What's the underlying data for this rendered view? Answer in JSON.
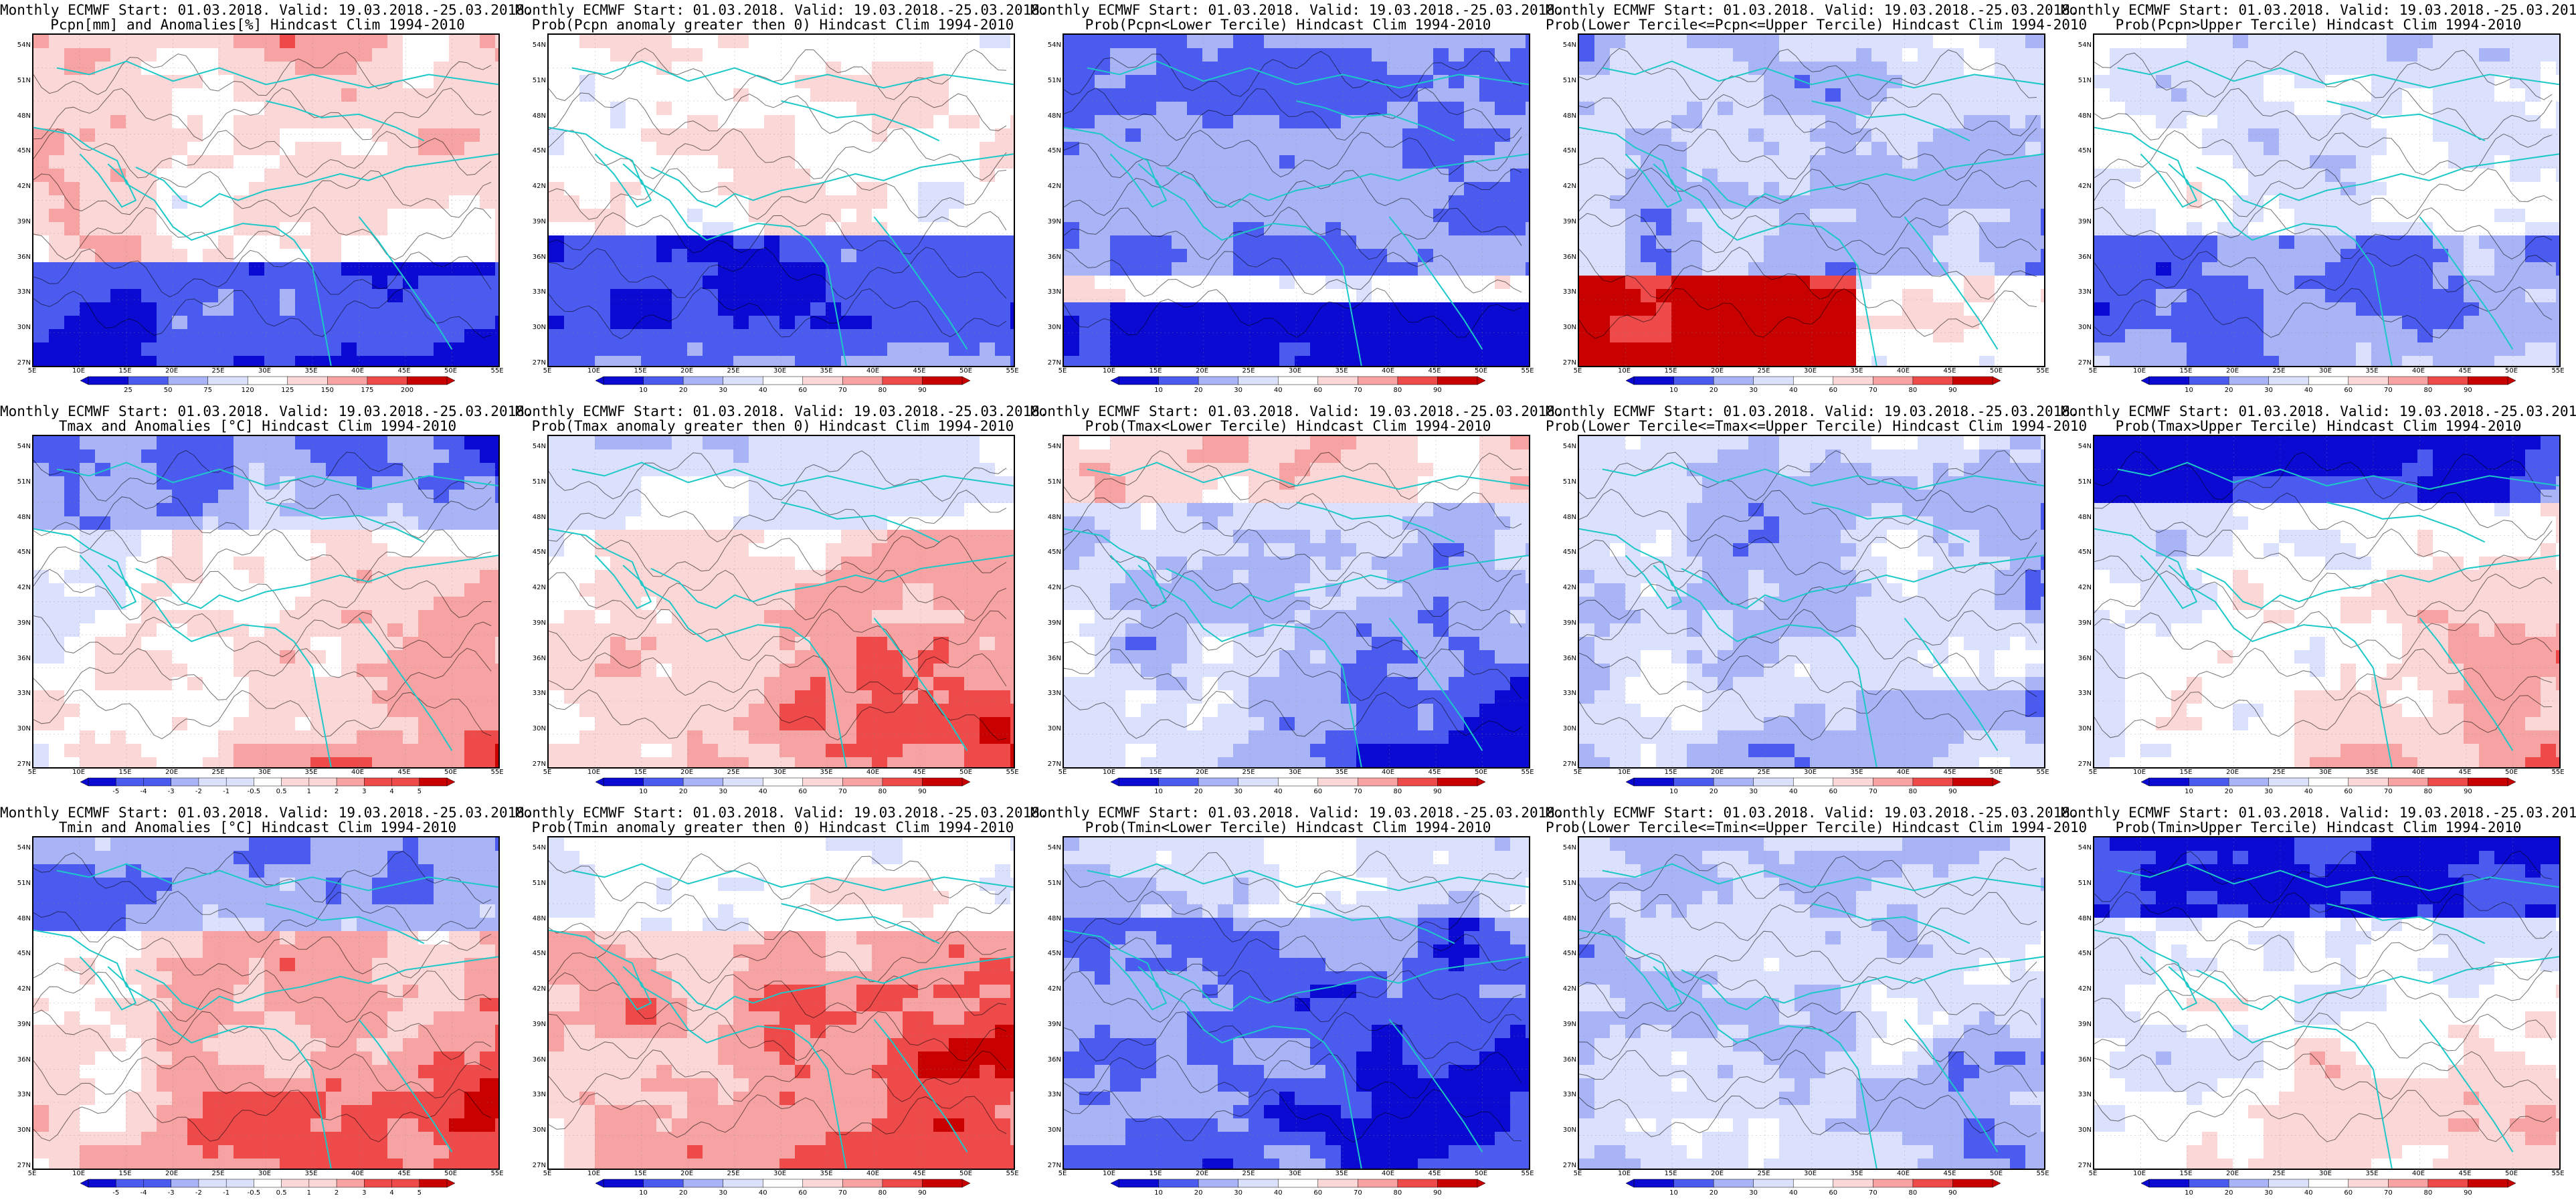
{
  "header_line": "Monthly ECMWF Start: 01.03.2018. Valid: 19.03.2018.-25.03.2018.",
  "lat_labels": [
    "54N",
    "51N",
    "48N",
    "45N",
    "42N",
    "39N",
    "36N",
    "33N",
    "30N",
    "27N"
  ],
  "lon_labels": [
    "5E",
    "10E",
    "15E",
    "20E",
    "25E",
    "30E",
    "35E",
    "40E",
    "45E",
    "50E",
    "55E"
  ],
  "colorbars": {
    "pcpn": [
      "25",
      "50",
      "75",
      "120",
      "125",
      "150",
      "175",
      "200"
    ],
    "prob": [
      "10",
      "20",
      "30",
      "40",
      "60",
      "70",
      "80",
      "90"
    ],
    "temp": [
      "-5",
      "-4",
      "-3",
      "-2",
      "-1",
      "-0.5",
      "0.5",
      "1",
      "2",
      "3",
      "4",
      "5"
    ]
  },
  "colors": {
    "deep_blue": "#0a0ad2",
    "mid_blue": "#4b5bf0",
    "light_blue": "#a9b4f7",
    "pale_blue": "#dbe0fc",
    "pale_red": "#fcd7d7",
    "light_red": "#f7a3a3",
    "mid_red": "#ee4a4a",
    "deep_red": "#c80000",
    "coast": "#1cc8c8",
    "contour": "#000000"
  },
  "panels": [
    {
      "id": "r1c1",
      "title": "Pcpn[mm] and Anomalies[%] Hindcast Clim 1994-2010",
      "cbar": "pcpn",
      "pattern": "pcpn_anom"
    },
    {
      "id": "r1c2",
      "title": "Prob(Pcpn anomaly greater then 0) Hindcast Clim 1994-2010",
      "cbar": "prob",
      "pattern": "pcpn_pos"
    },
    {
      "id": "r1c3",
      "title": "Prob(Pcpn<Lower Tercile) Hindcast Clim 1994-2010",
      "cbar": "prob",
      "pattern": "pcpn_low"
    },
    {
      "id": "r1c4",
      "title": "Prob(Lower Tercile<=Pcpn<=Upper Tercile) Hindcast Clim 1994-2010",
      "cbar": "prob",
      "pattern": "pcpn_mid"
    },
    {
      "id": "r1c5",
      "title": "Prob(Pcpn>Upper Tercile) Hindcast Clim 1994-2010",
      "cbar": "prob",
      "pattern": "pcpn_up"
    },
    {
      "id": "r2c1",
      "title": "Tmax and Anomalies [°C] Hindcast Clim 1994-2010",
      "cbar": "temp",
      "pattern": "t_anom"
    },
    {
      "id": "r2c2",
      "title": "Prob(Tmax anomaly greater then 0) Hindcast Clim 1994-2010",
      "cbar": "prob",
      "pattern": "t_pos"
    },
    {
      "id": "r2c3",
      "title": "Prob(Tmax<Lower Tercile) Hindcast Clim 1994-2010",
      "cbar": "prob",
      "pattern": "t_low"
    },
    {
      "id": "r2c4",
      "title": "Prob(Lower Tercile<=Tmax<=Upper Tercile) Hindcast Clim 1994-2010",
      "cbar": "prob",
      "pattern": "t_mid"
    },
    {
      "id": "r2c5",
      "title": "Prob(Tmax>Upper Tercile) Hindcast Clim 1994-2010",
      "cbar": "prob",
      "pattern": "t_up"
    },
    {
      "id": "r3c1",
      "title": "Tmin and Anomalies [°C] Hindcast Clim 1994-2010",
      "cbar": "temp",
      "pattern": "tn_anom"
    },
    {
      "id": "r3c2",
      "title": "Prob(Tmin anomaly greater then 0) Hindcast Clim 1994-2010",
      "cbar": "prob",
      "pattern": "tn_pos"
    },
    {
      "id": "r3c3",
      "title": "Prob(Tmin<Lower Tercile) Hindcast Clim 1994-2010",
      "cbar": "prob",
      "pattern": "tn_low"
    },
    {
      "id": "r3c4",
      "title": "Prob(Lower Tercile<=Tmin<=Upper Tercile) Hindcast Clim 1994-2010",
      "cbar": "prob",
      "pattern": "tn_mid"
    },
    {
      "id": "r3c5",
      "title": "Prob(Tmin>Upper Tercile) Hindcast Clim 1994-2010",
      "cbar": "prob",
      "pattern": "tn_up"
    }
  ]
}
